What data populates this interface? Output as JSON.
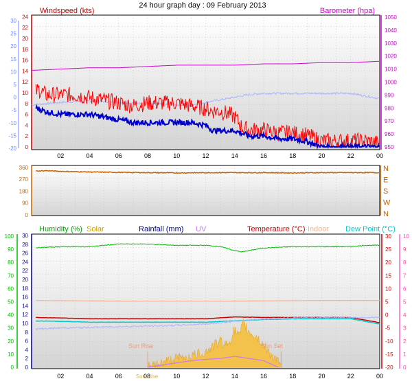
{
  "title": "24 hour graph day : 09 February 2013",
  "colors": {
    "wind_axis": "#6f86ff",
    "windspeed": "#ff0000",
    "gust_blue": "#0000cc",
    "baro": "#cc00cc",
    "baro_axis": "#cc00cc",
    "light_blue": "#aab4ff",
    "dir": "#c86400",
    "humidity": "#00bb00",
    "solar": "#c8a000",
    "rain": "#000099",
    "uv": "#cc77ff",
    "temp": "#cc0000",
    "indoor": "#f0b496",
    "dew": "#00cccc",
    "orange_fill": "#f5c03c",
    "sun_label": "#e0a080",
    "grid": "#bfbfbf"
  },
  "x_ticks": [
    "02",
    "04",
    "06",
    "08",
    "10",
    "12",
    "14",
    "16",
    "18",
    "20",
    "22",
    "00"
  ],
  "sun_rise_tick": "Sun Rise",
  "chart_data": [
    {
      "type": "line",
      "title": "24 hour graph day : 09 February 2013",
      "left_label": "Windspeed (kts)",
      "right_label": "Barometer (hpa)",
      "left_ticks_red": [
        "0",
        "2",
        "4",
        "6",
        "8",
        "10",
        "12",
        "14",
        "16",
        "18",
        "20",
        "22",
        "24"
      ],
      "left_ticks_blue": [
        "-20",
        "-15",
        "-10",
        "-5",
        "0",
        "5",
        "10",
        "15",
        "20",
        "25",
        "30"
      ],
      "right_ticks": [
        "950",
        "960",
        "970",
        "980",
        "990",
        "1000",
        "1010",
        "1020",
        "1030",
        "1040",
        "1050"
      ],
      "ylim_left": [
        0,
        25
      ],
      "ylim_right": [
        950,
        1050
      ],
      "x_range_hours": [
        0,
        24
      ],
      "series": [
        {
          "key": "baro",
          "axis": "right",
          "x": [
            0,
            2,
            4,
            6,
            8,
            10,
            12,
            14,
            16,
            18,
            20,
            22,
            24
          ],
          "values": [
            1009,
            1010,
            1011,
            1011,
            1012,
            1013,
            1013,
            1013,
            1014,
            1014,
            1015,
            1015,
            1016
          ]
        },
        {
          "key": "lightblue",
          "axis": "left_blue",
          "x": [
            0,
            2,
            4,
            6,
            8,
            10,
            11,
            12,
            13,
            14,
            15,
            16,
            18,
            20,
            22,
            24
          ],
          "values": [
            -3,
            -2,
            -1.5,
            -2,
            -2.5,
            -3,
            -3,
            -2,
            -1,
            0,
            1,
            1.5,
            1.5,
            1.5,
            1.5,
            -0.5
          ]
        },
        {
          "key": "windspeed",
          "axis": "left_red",
          "x": [
            0,
            0.5,
            1,
            2,
            3,
            4,
            5,
            6,
            7,
            8,
            9,
            10,
            11,
            12,
            12.5,
            13,
            14,
            14.5,
            15,
            16,
            17,
            18,
            19,
            20,
            21,
            22,
            23,
            24
          ],
          "values": [
            9,
            10,
            9,
            9,
            9,
            8.5,
            8,
            7.5,
            7,
            7.5,
            7.5,
            7.5,
            7,
            6.5,
            6,
            6,
            5,
            3,
            2.5,
            2.5,
            2,
            2,
            1.5,
            0.5,
            0.5,
            0.5,
            0.5,
            0
          ]
        },
        {
          "key": "gust",
          "axis": "left_red",
          "x": [
            0,
            0.5,
            1,
            2,
            3,
            4,
            5,
            6,
            7,
            8,
            9,
            10,
            11,
            12,
            12.5,
            13,
            14,
            14.5,
            15,
            16,
            17,
            18,
            19,
            20,
            21,
            22,
            23,
            24
          ],
          "values": [
            7.5,
            7,
            6.5,
            6,
            6,
            6,
            5.5,
            5,
            4.5,
            4.5,
            4.5,
            4.5,
            4.5,
            4,
            3,
            3,
            3,
            2.5,
            2,
            2,
            1.5,
            1.5,
            1,
            0,
            0,
            0,
            0,
            0
          ]
        }
      ]
    },
    {
      "type": "scatter",
      "left_ticks": [
        "0",
        "90",
        "180",
        "270",
        "360"
      ],
      "right_ticks": [
        "N",
        "W",
        "S",
        "E",
        "N"
      ],
      "ylim": [
        0,
        360
      ],
      "x_range_hours": [
        0,
        24
      ],
      "series": [
        {
          "key": "direction",
          "x": [
            0,
            1,
            2,
            4,
            6,
            8,
            10,
            12,
            14,
            16,
            18,
            20,
            22,
            24
          ],
          "values": [
            330,
            335,
            330,
            325,
            322,
            320,
            318,
            320,
            320,
            320,
            318,
            320,
            320,
            320
          ]
        }
      ]
    },
    {
      "type": "line",
      "labels": {
        "humidity": "Humidity (%)",
        "solar": "Solar",
        "rainfall": "Rainfall (mm)",
        "uv": "UV",
        "temperature": "Temperature (°C)",
        "indoor": "Indoor",
        "dewpoint": "Dew Point (°C)"
      },
      "humidity_ticks": [
        "0",
        "10",
        "20",
        "30",
        "40",
        "50",
        "60",
        "70",
        "80",
        "90",
        "100"
      ],
      "rain_ticks": [
        "0",
        "2",
        "4",
        "6",
        "8",
        "10",
        "12",
        "14",
        "16",
        "18",
        "20",
        "22",
        "24",
        "26",
        "28",
        "30"
      ],
      "temp_ticks": [
        "-20",
        "-15",
        "-10",
        "-5",
        "0",
        "5",
        "10",
        "15",
        "20",
        "25",
        "30"
      ],
      "uv_ticks": [
        "0",
        "1",
        "2",
        "3",
        "4",
        "5",
        "6",
        "7",
        "8",
        "9",
        "10"
      ],
      "ylim_humidity": [
        0,
        100
      ],
      "ylim_temp": [
        -20,
        30
      ],
      "ylim_uv": [
        0,
        10
      ],
      "x_range_hours": [
        0,
        24
      ],
      "annotations": {
        "sun_rise": "Sun Rise",
        "sun_set": "Sun Set"
      },
      "sun_rise_hour": 8,
      "sun_set_hour": 17.2,
      "series": [
        {
          "key": "humidity",
          "axis": "humidity",
          "x": [
            0,
            2,
            4,
            6,
            8,
            10,
            12,
            13,
            14,
            14.5,
            15,
            16,
            18,
            20,
            22,
            23,
            24
          ],
          "values": [
            91,
            92,
            92,
            94,
            94,
            93,
            93,
            92,
            89,
            88,
            89,
            91,
            92,
            92,
            92,
            93,
            93
          ]
        },
        {
          "key": "indoor",
          "axis": "temp",
          "x": [
            0,
            4,
            8,
            12,
            16,
            20,
            24
          ],
          "values": [
            5.5,
            5.3,
            5.2,
            5.2,
            5.3,
            5.5,
            5.5
          ]
        },
        {
          "key": "temp",
          "axis": "temp",
          "x": [
            0,
            2,
            4,
            6,
            8,
            10,
            12,
            14,
            16,
            18,
            20,
            22,
            23,
            24
          ],
          "values": [
            -1,
            -1.2,
            -1.5,
            -1.5,
            -1.5,
            -1.5,
            -1.5,
            -0.8,
            -1,
            -1,
            -1,
            -1,
            -2,
            -3
          ]
        },
        {
          "key": "dew",
          "axis": "temp",
          "x": [
            0,
            2,
            4,
            6,
            8,
            10,
            12,
            14,
            16,
            18,
            20,
            22,
            23,
            24
          ],
          "values": [
            -2.3,
            -2.5,
            -2.8,
            -2.8,
            -2.8,
            -2.8,
            -2.8,
            -2.3,
            -1.8,
            -1.5,
            -1.5,
            -1.5,
            -2.5,
            -3.5
          ]
        },
        {
          "key": "lightblue",
          "axis": "temp",
          "x": [
            0,
            2,
            4,
            6,
            8,
            10,
            12,
            14,
            16,
            18,
            20,
            22,
            24
          ],
          "values": [
            -5.5,
            -5,
            -4.8,
            -4.5,
            -4.3,
            -4,
            -3.5,
            -2.5,
            -1.5,
            -1.2,
            -1,
            -1,
            -1
          ]
        },
        {
          "key": "solar",
          "axis": "rain",
          "x": [
            8,
            9,
            10,
            11,
            12,
            13,
            13.5,
            14,
            14.3,
            14.6,
            15,
            15.5,
            16,
            16.5,
            17,
            17.2
          ],
          "values": [
            0,
            1,
            2,
            2.5,
            3.5,
            6,
            5,
            8.5,
            7,
            10,
            8,
            7,
            5,
            3,
            1,
            0
          ]
        },
        {
          "key": "uv",
          "axis": "rain",
          "x": [
            8,
            10,
            11,
            12,
            13,
            14,
            15,
            16,
            17
          ],
          "values": [
            0,
            1,
            1.5,
            1.8,
            2,
            2.5,
            2,
            1.5,
            0
          ]
        }
      ]
    }
  ]
}
